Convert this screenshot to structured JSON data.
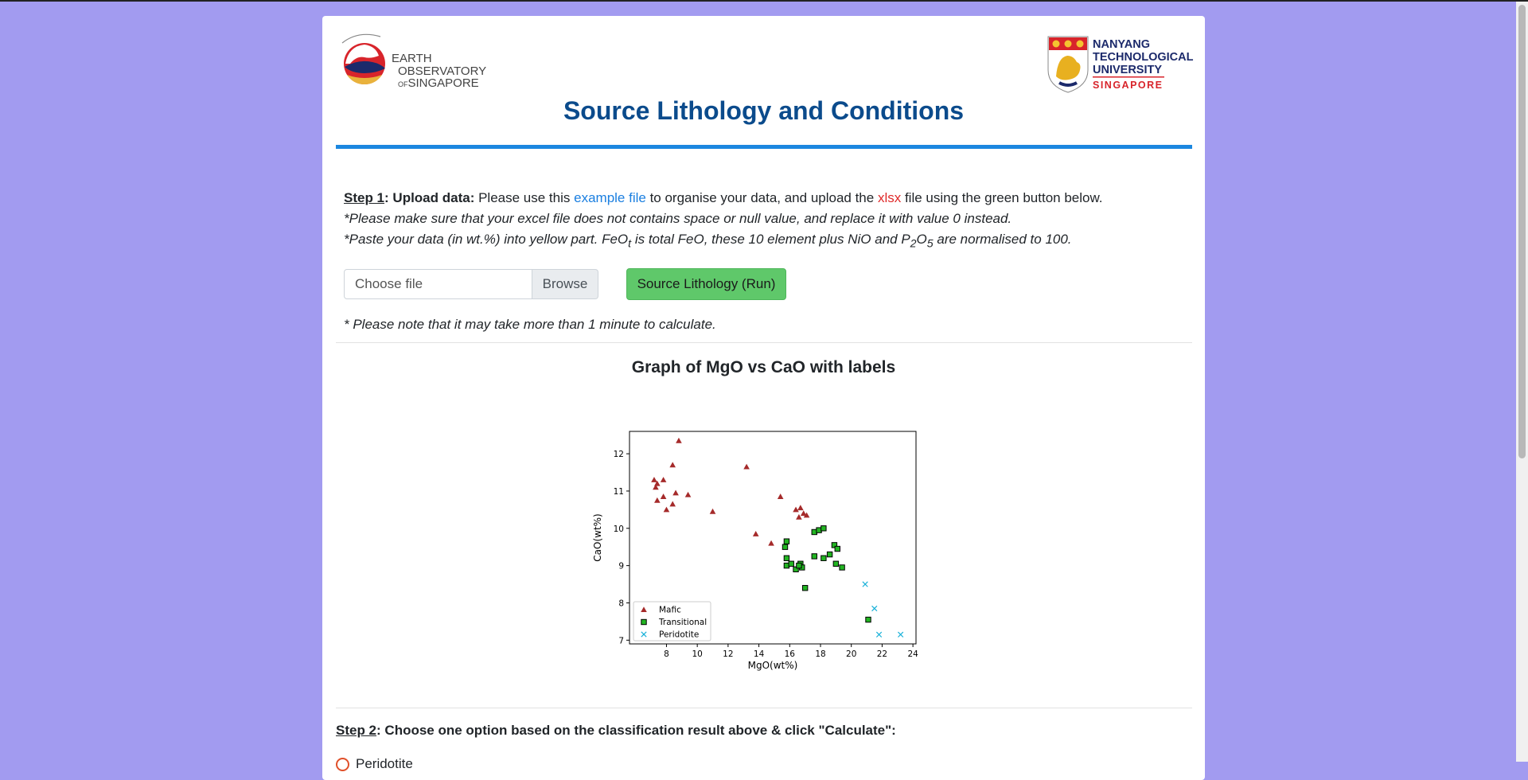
{
  "header": {
    "eos_logo": {
      "line1": "EARTH",
      "line2": "OBSERVATORY",
      "line3_small": "OF",
      "line3": "SINGAPORE"
    },
    "ntu_logo": {
      "line1": "NANYANG",
      "line2": "TECHNOLOGICAL",
      "line3": "UNIVERSITY",
      "line4": "SINGAPORE"
    },
    "title": "Source Lithology and Conditions"
  },
  "step1": {
    "step_label": "Step 1",
    "bold_label": ": Upload data:",
    "text_a": " Please use this ",
    "example_link": "example file",
    "text_b": " to organise your data, and upload the ",
    "xlsx": "xlsx",
    "text_c": " file using the green button below.",
    "note1": "*Please make sure that your excel file does not contains space or null value, and replace it with value 0 instead.",
    "note2_a": "*Paste your data (in wt.%) into yellow part. FeO",
    "note2_sub_t": "t",
    "note2_b": " is total FeO, these 10 element plus NiO and P",
    "note2_sub_2": "2",
    "note2_o": "O",
    "note2_sub_5": "5",
    "note2_c": " are normalised to 100.",
    "file_placeholder": "Choose file",
    "browse_label": "Browse",
    "run_label": "Source Lithology (Run)",
    "time_note": "* Please note that it may take more than 1 minute to calculate."
  },
  "graph": {
    "title": "Graph of MgO vs CaO with labels"
  },
  "chart_data": {
    "type": "scatter",
    "title": "",
    "xlabel": "MgO(wt%)",
    "ylabel": "CaO(wt%)",
    "xlim": [
      5.6,
      24.2
    ],
    "ylim": [
      6.9,
      12.6
    ],
    "xticks": [
      8,
      10,
      12,
      14,
      16,
      18,
      20,
      22,
      24
    ],
    "yticks": [
      7,
      8,
      9,
      10,
      11,
      12
    ],
    "grid": false,
    "legend": "lower-left",
    "series": [
      {
        "name": "Mafic",
        "marker": "triangle",
        "color": "#a52a2a",
        "points": [
          [
            8.8,
            12.35
          ],
          [
            8.4,
            11.7
          ],
          [
            7.2,
            11.3
          ],
          [
            7.3,
            11.1
          ],
          [
            7.4,
            11.2
          ],
          [
            7.8,
            11.3
          ],
          [
            8.6,
            10.95
          ],
          [
            9.4,
            10.9
          ],
          [
            7.8,
            10.85
          ],
          [
            7.4,
            10.75
          ],
          [
            8.4,
            10.65
          ],
          [
            8.0,
            10.5
          ],
          [
            11.0,
            10.45
          ],
          [
            13.2,
            11.65
          ],
          [
            15.4,
            10.85
          ],
          [
            13.8,
            9.85
          ],
          [
            14.8,
            9.6
          ],
          [
            16.4,
            10.5
          ],
          [
            16.7,
            10.55
          ],
          [
            16.6,
            10.3
          ],
          [
            16.9,
            10.4
          ],
          [
            17.1,
            10.35
          ]
        ]
      },
      {
        "name": "Transitional",
        "marker": "square",
        "color": "#22b522",
        "points": [
          [
            15.8,
            9.65
          ],
          [
            15.7,
            9.5
          ],
          [
            15.8,
            9.2
          ],
          [
            15.8,
            9.0
          ],
          [
            16.1,
            9.05
          ],
          [
            16.4,
            8.9
          ],
          [
            16.7,
            9.05
          ],
          [
            16.8,
            8.95
          ],
          [
            16.6,
            9.0
          ],
          [
            17.0,
            8.4
          ],
          [
            17.6,
            9.25
          ],
          [
            17.6,
            9.9
          ],
          [
            17.9,
            9.95
          ],
          [
            18.2,
            10.0
          ],
          [
            18.2,
            9.2
          ],
          [
            18.6,
            9.3
          ],
          [
            18.9,
            9.55
          ],
          [
            19.1,
            9.45
          ],
          [
            19.0,
            9.05
          ],
          [
            19.4,
            8.95
          ],
          [
            21.1,
            7.55
          ]
        ]
      },
      {
        "name": "Peridotite",
        "marker": "x",
        "color": "#16b0d8",
        "points": [
          [
            20.9,
            8.5
          ],
          [
            21.5,
            7.85
          ],
          [
            21.8,
            7.15
          ],
          [
            23.2,
            7.15
          ]
        ]
      }
    ]
  },
  "step2": {
    "step_label": "Step 2",
    "text": ": Choose one option based on the classification result above & click \"Calculate\":",
    "first_option": "Peridotite"
  }
}
